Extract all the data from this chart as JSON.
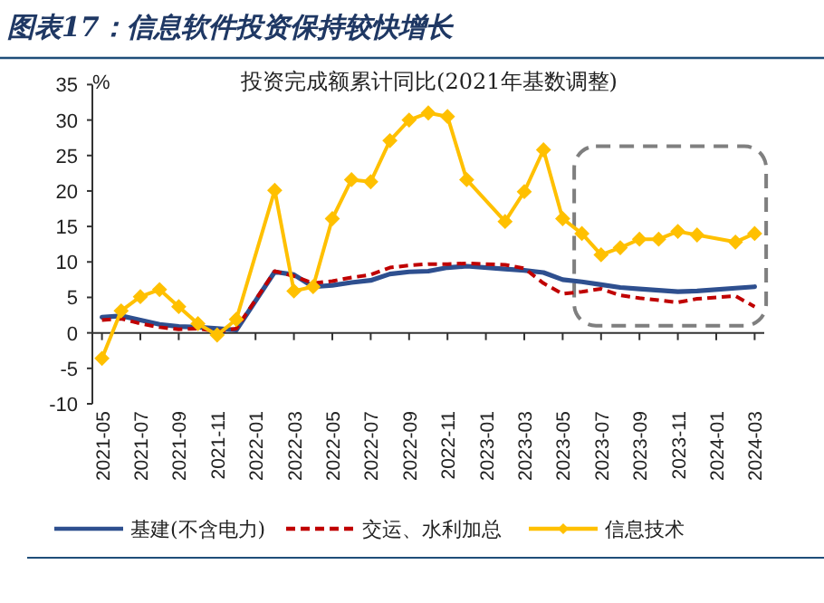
{
  "chart_data": {
    "type": "line",
    "title": "图表17：信息软件投资保持较快增长",
    "subtitle": "投资完成额累计同比(2021年基数调整)",
    "ylabel": "%",
    "categories": [
      "2021-05",
      null,
      "2021-07",
      null,
      "2021-09",
      null,
      "2021-11",
      null,
      "2022-01",
      null,
      "2022-03",
      null,
      "2022-05",
      null,
      "2022-07",
      null,
      "2022-09",
      null,
      "2022-11",
      null,
      "2023-01",
      null,
      "2023-03",
      null,
      "2023-05",
      null,
      "2023-07",
      null,
      "2023-09",
      null,
      "2023-11",
      null,
      "2024-01",
      null,
      "2024-03"
    ],
    "series": [
      {
        "name": "基建(不含电力)",
        "color": "#2e4f8f",
        "line_style": "solid",
        "marker": "none",
        "values": [
          2.2,
          2.4,
          1.8,
          1.2,
          0.9,
          0.8,
          0.6,
          0.4,
          null,
          8.6,
          8.2,
          6.5,
          6.7,
          7.1,
          7.4,
          8.3,
          8.6,
          8.7,
          9.2,
          9.4,
          null,
          9.0,
          8.8,
          8.5,
          7.5,
          7.2,
          6.8,
          6.4,
          6.2,
          6.0,
          5.8,
          5.9,
          null,
          6.3,
          6.5
        ]
      },
      {
        "name": "交运、水利加总",
        "color": "#c00000",
        "line_style": "dashed",
        "marker": "none",
        "values": [
          1.8,
          2.0,
          1.3,
          0.8,
          0.5,
          0.6,
          0.2,
          0.6,
          null,
          8.7,
          8.0,
          7.0,
          7.3,
          7.8,
          8.2,
          9.2,
          9.5,
          9.7,
          9.7,
          9.8,
          null,
          9.6,
          9.1,
          7.0,
          5.5,
          5.8,
          6.2,
          5.3,
          4.9,
          4.6,
          4.3,
          4.8,
          null,
          5.2,
          3.7
        ]
      },
      {
        "name": "信息技术",
        "color": "#ffc000",
        "line_style": "solid",
        "marker": "diamond",
        "values": [
          -3.6,
          3.1,
          5.1,
          6.1,
          3.7,
          1.3,
          -0.3,
          1.9,
          null,
          20.1,
          5.9,
          6.5,
          16.1,
          21.6,
          21.3,
          27.1,
          30.0,
          31.0,
          30.5,
          21.6,
          null,
          15.7,
          19.9,
          25.8,
          16.1,
          14.0,
          11.0,
          12.0,
          13.2,
          13.2,
          14.3,
          13.8,
          null,
          12.8,
          14.0
        ]
      }
    ],
    "ylim": [
      -10,
      35
    ],
    "yticks": [
      -10,
      -5,
      0,
      5,
      10,
      15,
      20,
      25,
      30,
      35
    ],
    "legend": "bottom"
  }
}
